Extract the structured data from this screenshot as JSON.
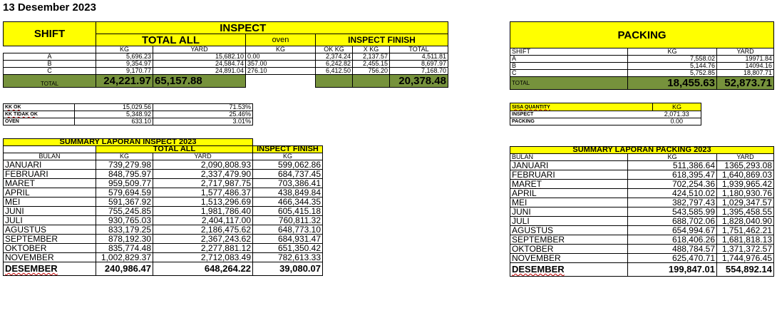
{
  "date_title": "13 Desember 2023",
  "inspect": {
    "title": "INSPECT",
    "shift_label": "SHIFT",
    "total_all_label": "TOTAL ALL",
    "oven_label": "oven",
    "finish_label": "INSPECT FINISH",
    "sub_kg": "KG",
    "sub_yard": "YARD",
    "sub_oven_kg": "KG",
    "sub_ok_kg": "OK KG",
    "sub_x_kg": "X KG",
    "sub_total": "TOTAL",
    "rows": [
      {
        "shift": "A",
        "kg": "5,696.23",
        "yard": "15,682.10",
        "oven": "0.00",
        "ok": "2,374.24",
        "x": "2,137.57",
        "total": "4,511.81"
      },
      {
        "shift": "B",
        "kg": "9,354.97",
        "yard": "24,584.74",
        "oven": "357.00",
        "ok": "6,242.82",
        "x": "2,455.15",
        "total": "8,697.97"
      },
      {
        "shift": "C",
        "kg": "9,170.77",
        "yard": "24,891.04",
        "oven": "276.10",
        "ok": "6,412.50",
        "x": "756.20",
        "total": "7,168.70"
      }
    ],
    "total_label": "TOTAL",
    "total_kg": "24,221.97",
    "total_yard": "65,157.88",
    "total_finish": "20,378.48"
  },
  "packing": {
    "title": "PACKING",
    "shift_label": "SHIFT",
    "kg_label": "KG",
    "yard_label": "YARD",
    "rows": [
      {
        "shift": "A",
        "kg": "7,558.02",
        "yard": "19971.84"
      },
      {
        "shift": "B",
        "kg": "5,144.76",
        "yard": "14094.16"
      },
      {
        "shift": "C",
        "kg": "5,752.85",
        "yard": "18,807.71"
      }
    ],
    "total_label": "TOTAL",
    "total_kg": "18,455.63",
    "total_yard": "52,873.71"
  },
  "kk": [
    {
      "label": "KK OK",
      "kg": "15,029.56",
      "pct": "71.53%"
    },
    {
      "label": "KK TIDAK OK",
      "kg": "5,348.92",
      "pct": "25.46%"
    },
    {
      "label": "OVEN",
      "kg": "633.10",
      "pct": "3.01%"
    }
  ],
  "sisa": {
    "label": "SISA QUANTITY",
    "kg_label": "KG",
    "inspect_label": "INSPECT",
    "inspect_value": "2,071.33",
    "packing_label": "PACKING",
    "packing_value": "0.00"
  },
  "summary_inspect": {
    "title": "SUMMARY LAPORAN INSPECT 2023",
    "total_all": "TOTAL ALL",
    "inspect_finish": "INSPECT FINISH",
    "bulan": "BULAN",
    "kg": "KG",
    "yard": "YARD",
    "finish_kg": "KG",
    "rows": [
      {
        "m": "JANUARI",
        "kg": "739,279.98",
        "yard": "2,090,808.93",
        "fin": "599,062.86"
      },
      {
        "m": "FEBRUARI",
        "kg": "848,795.97",
        "yard": "2,337,479.90",
        "fin": "684,737.45"
      },
      {
        "m": "MARET",
        "kg": "959,509.77",
        "yard": "2,717,987.75",
        "fin": "703,386.41"
      },
      {
        "m": "APRIL",
        "kg": "579,694.59",
        "yard": "1,577,486.37",
        "fin": "438,849.84"
      },
      {
        "m": "MEI",
        "kg": "591,367.92",
        "yard": "1,513,296.69",
        "fin": "466,344.35"
      },
      {
        "m": "JUNI",
        "kg": "755,245.85",
        "yard": "1,981,786.40",
        "fin": "605,415.18"
      },
      {
        "m": "JULI",
        "kg": "930,765.03",
        "yard": "2,404,117.00",
        "fin": "760,811.32"
      },
      {
        "m": "AGUSTUS",
        "kg": "833,179.25",
        "yard": "2,186,475.62",
        "fin": "648,773.10"
      },
      {
        "m": "SEPTEMBER",
        "kg": "878,192.30",
        "yard": "2,367,243.62",
        "fin": "684,931.47"
      },
      {
        "m": "OKTOBER",
        "kg": "835,774.48",
        "yard": "2,277,881.12",
        "fin": "651,350.42"
      },
      {
        "m": "NOVEMBER",
        "kg": "1,002,829.37",
        "yard": "2,712,083.49",
        "fin": "782,613.33"
      }
    ],
    "last": {
      "m": "DESEMBER",
      "kg": "240,986.47",
      "yard": "648,264.22",
      "fin": "39,080.07"
    }
  },
  "summary_packing": {
    "title": "SUMMARY LAPORAN PACKING 2023",
    "bulan": "BULAN",
    "kg": "KG",
    "yard": "YARD",
    "rows": [
      {
        "m": "JANUARI",
        "kg": "511,386.64",
        "yard": "1365,293.08"
      },
      {
        "m": "FEBRUARI",
        "kg": "618,395.47",
        "yard": "1,640,869.03"
      },
      {
        "m": "MARET",
        "kg": "702,254.36",
        "yard": "1,939,965.42"
      },
      {
        "m": "APRIL",
        "kg": "424,510.02",
        "yard": "1,180,930.76"
      },
      {
        "m": "MEI",
        "kg": "382,797.43",
        "yard": "1,029,347.57"
      },
      {
        "m": "JUNI",
        "kg": "543,585.99",
        "yard": "1,395,458.55"
      },
      {
        "m": "JULI",
        "kg": "688,702.06",
        "yard": "1,828,040.90"
      },
      {
        "m": "AGUSTUS",
        "kg": "654,994.67",
        "yard": "1,751,462.21"
      },
      {
        "m": "SEPTEMBER",
        "kg": "618,406.26",
        "yard": "1,681,818.13"
      },
      {
        "m": "OKTOBER",
        "kg": "488,784.57",
        "yard": "1,371,372.57"
      },
      {
        "m": "NOVEMBER",
        "kg": "625,470.71",
        "yard": "1,744,976.45"
      }
    ],
    "last": {
      "m": "DESEMBER",
      "kg": "199,847.01",
      "yard": "554,892.14"
    }
  },
  "colors": {
    "header_yellow": "#ffff00",
    "total_green": "#76923c"
  }
}
